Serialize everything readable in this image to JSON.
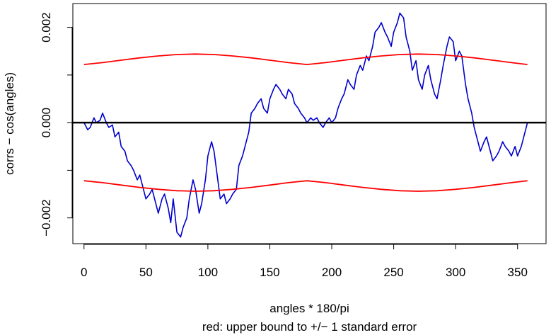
{
  "chart_data": {
    "type": "line",
    "xlabel": "angles * 180/pi",
    "subtitle": "red: upper bound to +/− 1 standard error",
    "ylabel": "corrs − cos(angles)",
    "xlim": [
      -9,
      373
    ],
    "ylim": [
      -0.00254,
      0.0025
    ],
    "x_ticks": [
      0,
      50,
      100,
      150,
      200,
      250,
      300,
      350
    ],
    "x_tick_labels": [
      "0",
      "50",
      "100",
      "150",
      "200",
      "250",
      "300",
      "350"
    ],
    "y_ticks": [
      -0.002,
      -0.001,
      0.0,
      0.001,
      0.002
    ],
    "y_tick_labels": [
      "−0.002",
      "",
      "0.000",
      "",
      "0.002"
    ],
    "grid": false,
    "reference_line": {
      "y": 0,
      "color": "#000000"
    },
    "series": [
      {
        "color": "#0000cc",
        "x": [
          0,
          3,
          5,
          8,
          10,
          13,
          15,
          18,
          20,
          23,
          25,
          28,
          30,
          33,
          35,
          38,
          40,
          43,
          45,
          48,
          50,
          53,
          55,
          58,
          60,
          63,
          65,
          68,
          70,
          72,
          75,
          78,
          80,
          83,
          85,
          88,
          90,
          93,
          95,
          98,
          100,
          103,
          105,
          108,
          110,
          113,
          115,
          118,
          120,
          123,
          125,
          128,
          130,
          133,
          135,
          138,
          140,
          143,
          145,
          148,
          150,
          153,
          155,
          158,
          160,
          163,
          165,
          168,
          170,
          173,
          175,
          178,
          180,
          183,
          185,
          188,
          190,
          193,
          195,
          198,
          200,
          203,
          205,
          208,
          210,
          213,
          215,
          218,
          220,
          223,
          225,
          228,
          230,
          233,
          235,
          238,
          240,
          243,
          245,
          248,
          250,
          253,
          255,
          258,
          260,
          263,
          265,
          268,
          270,
          273,
          275,
          278,
          280,
          283,
          285,
          288,
          290,
          293,
          295,
          298,
          300,
          303,
          305,
          308,
          310,
          313,
          315,
          318,
          320,
          323,
          325,
          328,
          330,
          333,
          335,
          338,
          340,
          343,
          345,
          348,
          350,
          353,
          355,
          358
        ],
        "y": [
          0.0,
          -0.00015,
          -0.0001,
          0.0001,
          0.0,
          5e-05,
          0.0002,
          0.0,
          -0.0001,
          -5e-05,
          -0.0003,
          -0.0002,
          -0.0005,
          -0.0006,
          -0.0008,
          -0.0009,
          -0.001,
          -0.0012,
          -0.0011,
          -0.0014,
          -0.0016,
          -0.0015,
          -0.0014,
          -0.0017,
          -0.0019,
          -0.0016,
          -0.0015,
          -0.0018,
          -0.0021,
          -0.0016,
          -0.0023,
          -0.0024,
          -0.0022,
          -0.002,
          -0.0016,
          -0.0012,
          -0.0014,
          -0.0019,
          -0.0017,
          -0.0012,
          -0.0007,
          -0.0004,
          -0.0006,
          -0.0012,
          -0.0016,
          -0.0015,
          -0.0017,
          -0.0016,
          -0.0015,
          -0.0014,
          -0.0009,
          -0.0007,
          -0.0005,
          -0.0002,
          0.0002,
          0.0003,
          0.0004,
          0.0005,
          0.0003,
          0.0002,
          0.0005,
          0.0007,
          0.0008,
          0.0007,
          0.0006,
          0.0005,
          0.0007,
          0.0006,
          0.0004,
          0.0003,
          0.0002,
          0.0001,
          0.0,
          0.0001,
          5e-05,
          0.0001,
          0.0,
          -0.0001,
          0.0,
          0.0001,
          0.0,
          0.0001,
          0.0003,
          0.0005,
          0.0006,
          0.0009,
          0.0008,
          0.0007,
          0.001,
          0.0012,
          0.0011,
          0.0014,
          0.0013,
          0.0016,
          0.0019,
          0.002,
          0.0021,
          0.0019,
          0.0018,
          0.0016,
          0.0019,
          0.0021,
          0.0023,
          0.0022,
          0.0018,
          0.0015,
          0.0011,
          0.0013,
          0.0009,
          0.0007,
          0.001,
          0.0012,
          0.0009,
          0.0006,
          0.0005,
          0.0009,
          0.0012,
          0.0016,
          0.0018,
          0.0017,
          0.0013,
          0.0015,
          0.0014,
          0.0008,
          0.0005,
          0.0002,
          -0.0001,
          -0.0004,
          -0.0006,
          -0.0004,
          -0.0003,
          -0.0006,
          -0.0008,
          -0.0007,
          -0.0006,
          -0.0004,
          -0.0005,
          -0.0006,
          -0.0007,
          -0.0005,
          -0.0007,
          -0.0005,
          -0.0003,
          0.0
        ]
      },
      {
        "color": "#ff0000",
        "x": [
          0,
          15,
          30,
          45,
          60,
          75,
          90,
          105,
          120,
          135,
          150,
          165,
          180,
          195,
          210,
          225,
          240,
          255,
          270,
          285,
          300,
          315,
          330,
          345,
          358
        ],
        "y": [
          0.00122,
          0.00126,
          0.00131,
          0.00136,
          0.0014,
          0.00143,
          0.00144,
          0.00143,
          0.0014,
          0.00136,
          0.00131,
          0.00126,
          0.00122,
          0.00126,
          0.00131,
          0.00136,
          0.0014,
          0.00143,
          0.00144,
          0.00143,
          0.0014,
          0.00136,
          0.00131,
          0.00126,
          0.00122
        ]
      },
      {
        "color": "#ff0000",
        "x": [
          0,
          15,
          30,
          45,
          60,
          75,
          90,
          105,
          120,
          135,
          150,
          165,
          180,
          195,
          210,
          225,
          240,
          255,
          270,
          285,
          300,
          315,
          330,
          345,
          358
        ],
        "y": [
          -0.00122,
          -0.00126,
          -0.00131,
          -0.00136,
          -0.0014,
          -0.00143,
          -0.00144,
          -0.00143,
          -0.0014,
          -0.00136,
          -0.00131,
          -0.00126,
          -0.00122,
          -0.00126,
          -0.00131,
          -0.00136,
          -0.0014,
          -0.00143,
          -0.00144,
          -0.00143,
          -0.0014,
          -0.00136,
          -0.00131,
          -0.00126,
          -0.00122
        ]
      }
    ]
  }
}
